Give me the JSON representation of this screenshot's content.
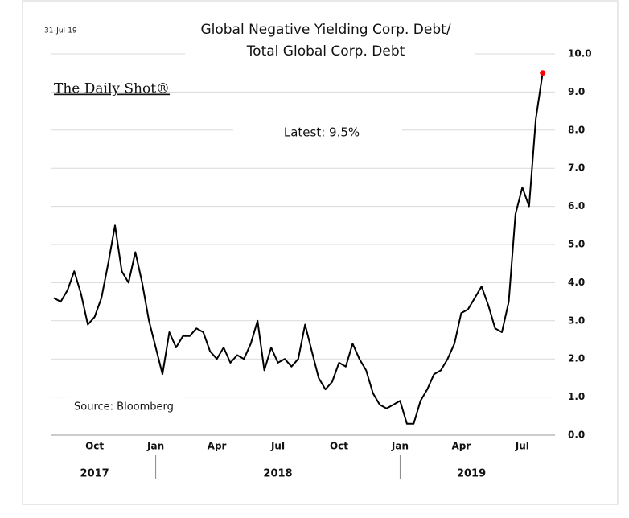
{
  "chart_data": {
    "type": "line",
    "date": "31-Jul-19",
    "title": [
      "Global Negative Yielding Corp. Debt/",
      "Total Global Corp. Debt"
    ],
    "watermark": "The Daily Shot®",
    "annotation": "Latest:  9.5%",
    "source": "Source: Bloomberg",
    "categories": [
      null,
      null,
      null,
      null,
      null,
      null,
      "Oct",
      null,
      null,
      null,
      null,
      null,
      null,
      null,
      null,
      "Jan",
      null,
      null,
      null,
      null,
      null,
      null,
      null,
      null,
      "Apr",
      null,
      null,
      null,
      null,
      null,
      null,
      null,
      null,
      "Jul",
      null,
      null,
      null,
      null,
      null,
      null,
      null,
      null,
      "Oct",
      null,
      null,
      null,
      null,
      null,
      null,
      null,
      null,
      "Jan",
      null,
      null,
      null,
      null,
      null,
      null,
      null,
      null,
      "Apr",
      null,
      null,
      null,
      null,
      null,
      null,
      null,
      null,
      "Jul",
      null,
      null,
      null
    ],
    "years": [
      "2017",
      "2018",
      "2019"
    ],
    "series": [
      {
        "color": "#000000",
        "last_point_color": "#ff0000",
        "values": [
          3.6,
          3.5,
          3.8,
          4.3,
          3.7,
          2.9,
          3.1,
          3.6,
          4.5,
          5.5,
          4.3,
          4.0,
          4.8,
          4.0,
          3.0,
          2.3,
          1.6,
          2.7,
          2.3,
          2.6,
          2.6,
          2.8,
          2.7,
          2.2,
          2.0,
          2.3,
          1.9,
          2.1,
          2.0,
          2.4,
          3.0,
          1.7,
          2.3,
          1.9,
          2.0,
          1.8,
          2.0,
          2.9,
          2.2,
          1.5,
          1.2,
          1.4,
          1.9,
          1.8,
          2.4,
          2.0,
          1.7,
          1.1,
          0.8,
          0.7,
          0.8,
          0.9,
          0.3,
          0.3,
          0.9,
          1.2,
          1.6,
          1.7,
          2.0,
          2.4,
          3.2,
          3.3,
          3.6,
          3.9,
          3.4,
          2.8,
          2.7,
          3.5,
          5.8,
          6.5,
          6.0,
          8.3,
          9.5
        ]
      }
    ],
    "ylim": [
      0,
      10
    ],
    "yticks": [
      {
        "value": 0,
        "label": "0.0"
      },
      {
        "value": 1,
        "label": "1.0"
      },
      {
        "value": 2,
        "label": "2.0"
      },
      {
        "value": 3,
        "label": "3.0"
      },
      {
        "value": 4,
        "label": "4.0"
      },
      {
        "value": 5,
        "label": "5.0"
      },
      {
        "value": 6,
        "label": "6.0"
      },
      {
        "value": 7,
        "label": "7.0"
      },
      {
        "value": 8,
        "label": "8.0"
      },
      {
        "value": 9,
        "label": "9.0"
      },
      {
        "value": 10,
        "label": "10.0"
      }
    ],
    "grid": true
  }
}
